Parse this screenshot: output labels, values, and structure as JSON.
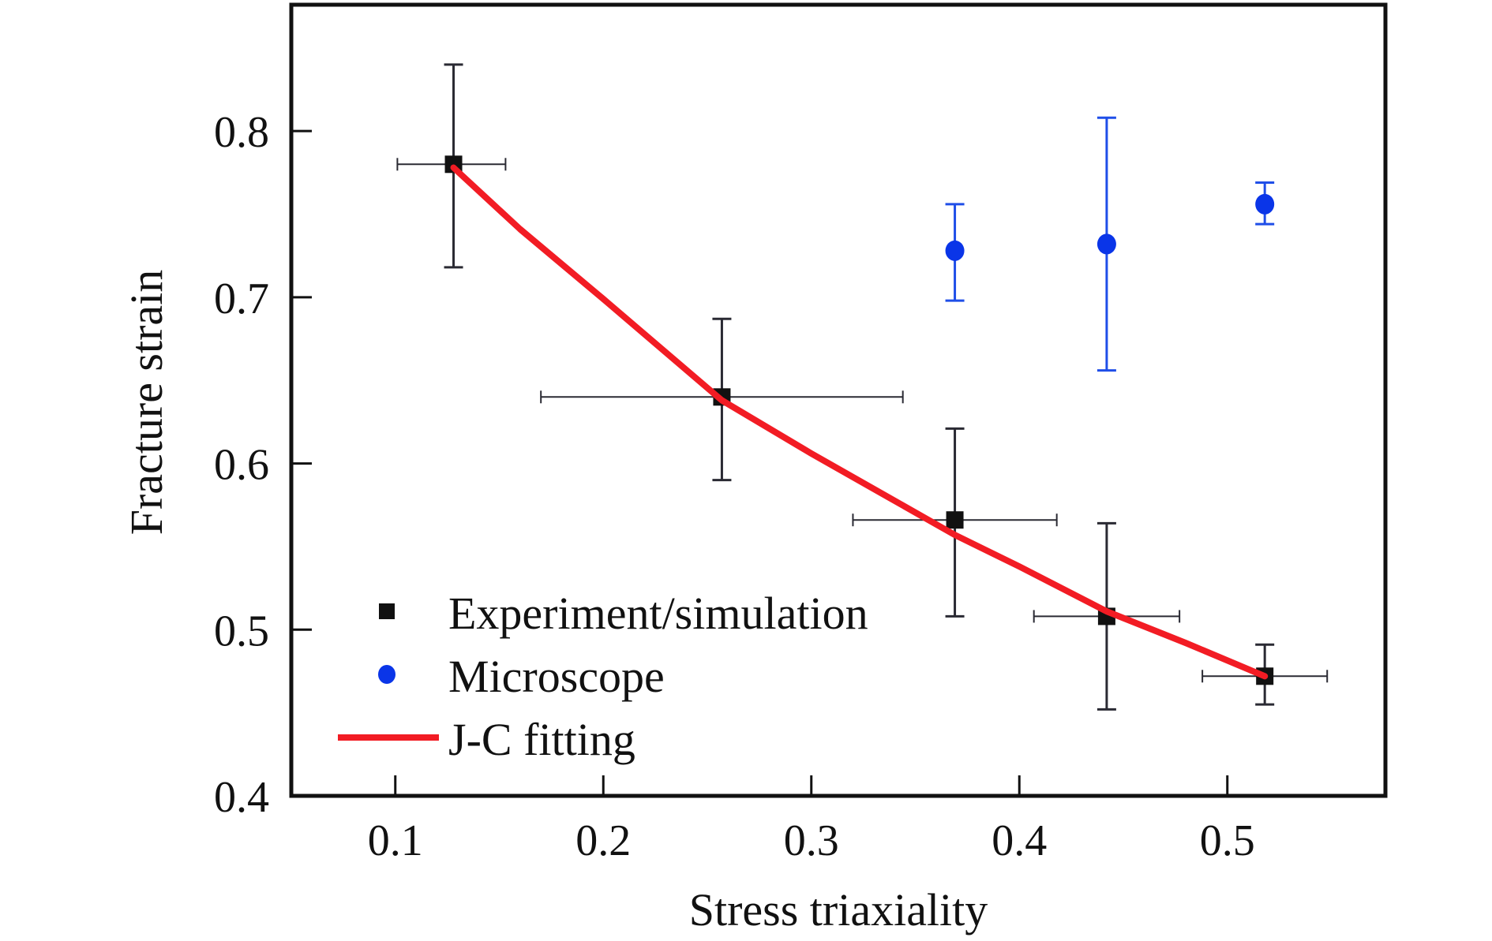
{
  "chart_data": {
    "type": "scatter",
    "title": "",
    "xlabel": "Stress  triaxiality",
    "ylabel": "Fracture strain",
    "xlim": [
      0.05,
      0.576
    ],
    "ylim": [
      0.4,
      0.876
    ],
    "xticks": [
      0.1,
      0.2,
      0.3,
      0.4,
      0.5
    ],
    "xtick_labels": [
      "0.1",
      "0.2",
      "0.3",
      "0.4",
      "0.5"
    ],
    "yticks": [
      0.4,
      0.5,
      0.6,
      0.7,
      0.8
    ],
    "ytick_labels": [
      "0.4",
      "0.5",
      "0.6",
      "0.7",
      "0.8"
    ],
    "grid": false,
    "legend_position": "bottom-left",
    "series": [
      {
        "name": "Experiment/simulation",
        "kind": "scatter-square",
        "color": "#111111",
        "points": [
          {
            "x": 0.128,
            "y": 0.78,
            "y_low": 0.718,
            "y_high": 0.84,
            "x_low": 0.101,
            "x_high": 0.153
          },
          {
            "x": 0.257,
            "y": 0.64,
            "y_low": 0.59,
            "y_high": 0.687,
            "x_low": 0.17,
            "x_high": 0.344
          },
          {
            "x": 0.369,
            "y": 0.566,
            "y_low": 0.508,
            "y_high": 0.621,
            "x_low": 0.32,
            "x_high": 0.418
          },
          {
            "x": 0.442,
            "y": 0.508,
            "y_low": 0.452,
            "y_high": 0.564,
            "x_low": 0.407,
            "x_high": 0.477
          },
          {
            "x": 0.518,
            "y": 0.472,
            "y_low": 0.455,
            "y_high": 0.491,
            "x_low": 0.488,
            "x_high": 0.548
          }
        ]
      },
      {
        "name": "Microscope",
        "kind": "scatter-circle",
        "color": "#0a35e8",
        "points": [
          {
            "x": 0.369,
            "y": 0.728,
            "y_low": 0.698,
            "y_high": 0.756
          },
          {
            "x": 0.442,
            "y": 0.732,
            "y_low": 0.656,
            "y_high": 0.808
          },
          {
            "x": 0.518,
            "y": 0.756,
            "y_low": 0.744,
            "y_high": 0.769
          }
        ]
      },
      {
        "name": "J-C fitting",
        "kind": "line",
        "color": "#f21c24",
        "x": [
          0.128,
          0.16,
          0.2,
          0.257,
          0.3,
          0.369,
          0.4,
          0.442,
          0.48,
          0.518
        ],
        "y": [
          0.778,
          0.741,
          0.699,
          0.638,
          0.606,
          0.557,
          0.538,
          0.511,
          0.492,
          0.472
        ]
      }
    ]
  }
}
